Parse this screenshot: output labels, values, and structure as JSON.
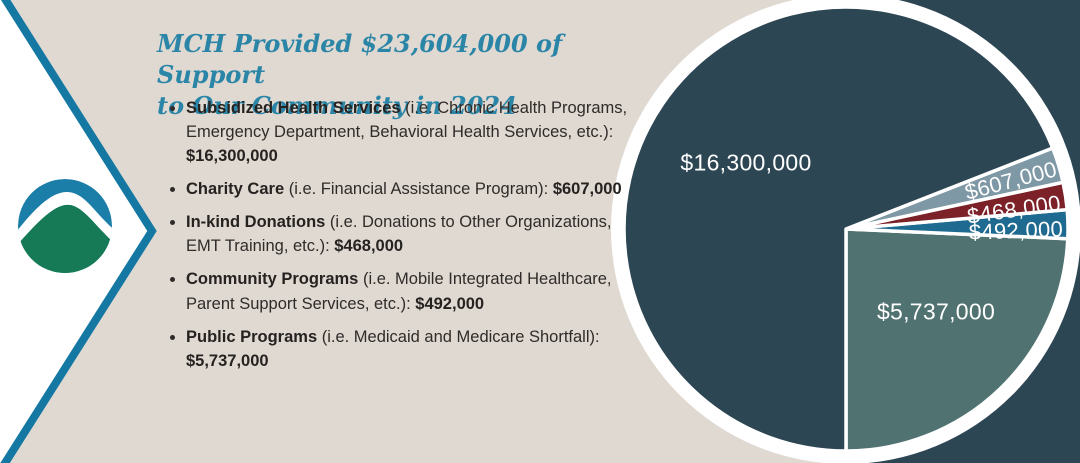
{
  "page": {
    "background_color": "#dfd9d2",
    "panel_color": "#2d4654"
  },
  "branding": {
    "logo_name": "MCH logo",
    "logo_blue": "#1b7ea9",
    "logo_green": "#157a55",
    "diamond_border_color": "#1478a3"
  },
  "header": {
    "title_line1": "MCH Provided $23,604,000 of Support",
    "title_line2": "to Our Community in 2024",
    "title_color": "#2b85a7"
  },
  "support_list": {
    "items": [
      {
        "name": "Subsidized Health Services",
        "detail": " (i.e. Chronic Health Programs, Emergency Department, Behavioral Health Services, etc.): ",
        "amount": "$16,300,000"
      },
      {
        "name": "Charity Care",
        "detail": " (i.e. Financial Assistance Program): ",
        "amount": "$607,000"
      },
      {
        "name": "In-kind Donations",
        "detail": " (i.e. Donations to Other Organizations, EMT Training, etc.): ",
        "amount": "$468,000"
      },
      {
        "name": "Community Programs",
        "detail": " (i.e. Mobile Integrated Healthcare, Parent Support Services, etc.): ",
        "amount": "$492,000"
      },
      {
        "name": "Public Programs",
        "detail": " (i.e. Medicaid and Medicare Shortfall): ",
        "amount": "$5,737,000"
      }
    ]
  },
  "chart_data": {
    "type": "pie",
    "title": "MCH Provided $23,604,000 of Support to Our Community in 2024",
    "total": 23604000,
    "units": "USD",
    "legend": "none",
    "ring_color": "#ffffff",
    "background_color": "#2d4654",
    "start_angle_deg": -90,
    "direction": "ccw",
    "slices": [
      {
        "category": "Public Programs",
        "value": 5737000,
        "label": "$5,737,000",
        "color": "#507271"
      },
      {
        "category": "Community Programs",
        "value": 492000,
        "label": "$492,000",
        "color": "#1f6a90"
      },
      {
        "category": "In-kind Donations",
        "value": 468000,
        "label": "$468,000",
        "color": "#7c2127"
      },
      {
        "category": "Charity Care",
        "value": 607000,
        "label": "$607,000",
        "color": "#7e98a5"
      },
      {
        "category": "Subsidized Health Services",
        "value": 16300000,
        "label": "$16,300,000",
        "color": "#2d4654"
      }
    ]
  }
}
